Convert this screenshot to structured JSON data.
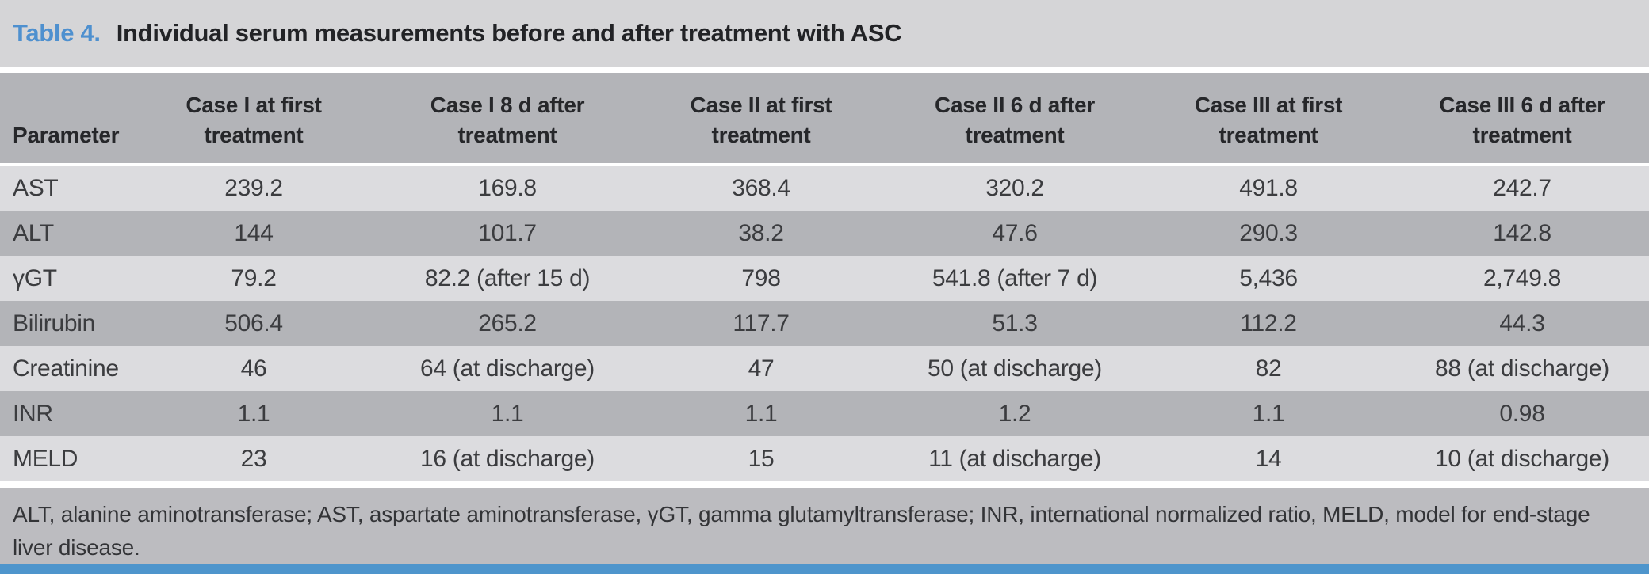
{
  "caption": {
    "label": "Table 4.",
    "title": "Individual serum measurements before and after treatment with ASC"
  },
  "columns": [
    {
      "label": "Parameter"
    },
    {
      "line1": "Case I at first",
      "line2": "treatment"
    },
    {
      "line1": "Case I 8 d after",
      "line2": "treatment"
    },
    {
      "line1": "Case II at first",
      "line2": "treatment"
    },
    {
      "line1": "Case II 6 d after",
      "line2": "treatment"
    },
    {
      "line1": "Case III at first",
      "line2": "treatment"
    },
    {
      "line1": "Case III 6 d after",
      "line2": "treatment"
    }
  ],
  "rows": [
    {
      "parameter": "AST",
      "values": [
        "239.2",
        "169.8",
        "368.4",
        "320.2",
        "491.8",
        "242.7"
      ]
    },
    {
      "parameter": "ALT",
      "values": [
        "144",
        "101.7",
        "38.2",
        "47.6",
        "290.3",
        "142.8"
      ]
    },
    {
      "parameter": "γGT",
      "values": [
        "79.2",
        "82.2 (after 15 d)",
        "798",
        "541.8 (after 7 d)",
        "5,436",
        "2,749.8"
      ]
    },
    {
      "parameter": "Bilirubin",
      "values": [
        "506.4",
        "265.2",
        "117.7",
        "51.3",
        "112.2",
        "44.3"
      ]
    },
    {
      "parameter": "Creatinine",
      "values": [
        "46",
        "64 (at discharge)",
        "47",
        "50 (at discharge)",
        "82",
        "88 (at discharge)"
      ]
    },
    {
      "parameter": "INR",
      "values": [
        "1.1",
        "1.1",
        "1.1",
        "1.2",
        "1.1",
        "0.98"
      ]
    },
    {
      "parameter": "MELD",
      "values": [
        "23",
        "16 (at discharge)",
        "15",
        "11 (at discharge)",
        "14",
        "10 (at discharge)"
      ]
    }
  ],
  "footnote": "ALT, alanine aminotransferase; AST, aspartate aminotransferase, γGT, gamma glutamyltransferase; INR, international normalized ratio, MELD, model for end-stage liver disease.",
  "colors": {
    "accent_blue": "#4e90cf",
    "bottom_bar_blue": "#4e95cc",
    "caption_bg": "#d5d5d7",
    "header_bg": "#b3b4b8",
    "row_light_bg": "#dcdcdf",
    "row_dark_bg": "#b3b4b8",
    "footnote_bg": "#bcbcc0",
    "text_dark": "#26272a"
  }
}
